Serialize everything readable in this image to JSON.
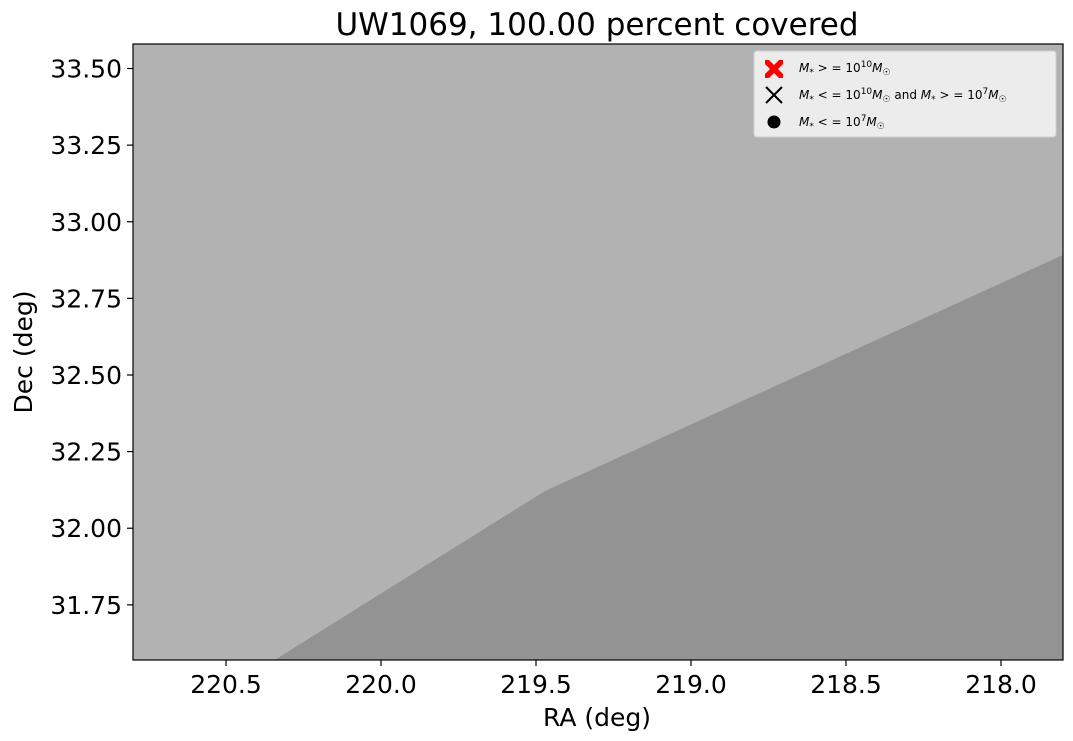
{
  "chart_data": {
    "type": "area",
    "title": "UW1069, 100.00 percent covered",
    "xlabel": "RA (deg)",
    "ylabel": "Dec (deg)",
    "xlim": [
      220.8,
      217.8
    ],
    "ylim": [
      31.57,
      33.58
    ],
    "x_inverted": true,
    "x_ticks": [
      220.5,
      220.0,
      219.5,
      219.0,
      218.5,
      218.0
    ],
    "x_tick_labels": [
      "220.5",
      "220.0",
      "219.5",
      "219.0",
      "218.5",
      "218.0"
    ],
    "y_ticks": [
      31.75,
      32.0,
      32.25,
      32.5,
      32.75,
      33.0,
      33.25,
      33.5
    ],
    "y_tick_labels": [
      "31.75",
      "32.00",
      "32.25",
      "32.50",
      "32.75",
      "33.00",
      "33.25",
      "33.50"
    ],
    "regions": [
      {
        "name": "footprint-upper",
        "fill": "#b2b2b2",
        "points": [
          [
            220.8,
            31.57
          ],
          [
            220.8,
            33.58
          ],
          [
            217.8,
            33.58
          ],
          [
            217.8,
            32.89
          ],
          [
            219.47,
            32.12
          ],
          [
            220.34,
            31.57
          ]
        ]
      },
      {
        "name": "footprint-lower",
        "fill": "#939393",
        "points": [
          [
            220.34,
            31.57
          ],
          [
            219.47,
            32.12
          ],
          [
            217.8,
            32.89
          ],
          [
            217.8,
            31.57
          ]
        ]
      }
    ],
    "legend": {
      "position": "top-right",
      "entries": [
        {
          "label": "M* >= 10^10 M☉",
          "marker": "X-filled",
          "color": "#ff0000"
        },
        {
          "label": "M* <= 10^10 M☉ and M* >= 10^7 M☉",
          "marker": "x",
          "color": "#000000"
        },
        {
          "label": "M* <= 10^7 M☉",
          "marker": "circle",
          "color": "#000000"
        }
      ]
    },
    "grid": false
  }
}
